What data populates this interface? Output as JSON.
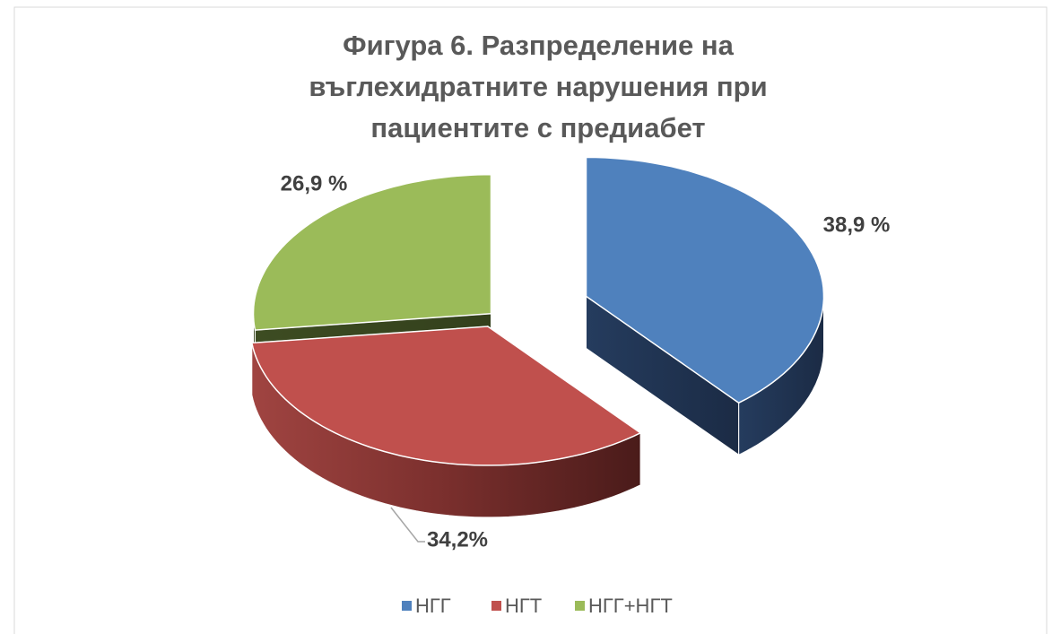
{
  "chart_data": {
    "type": "pie3d",
    "title": "Фигура 6. Разпределение на въглехидратните нарушения при пациентите с предиабет",
    "categories": [
      "НГГ",
      "НГТ",
      "НГГ+НГТ"
    ],
    "values": [
      38.9,
      34.2,
      26.9
    ],
    "value_labels": [
      "38,9 %",
      "34,2%",
      "26,9 %"
    ],
    "colors": [
      "#4f81bd",
      "#c0504d",
      "#9bbb59"
    ],
    "legend": "bottom"
  }
}
